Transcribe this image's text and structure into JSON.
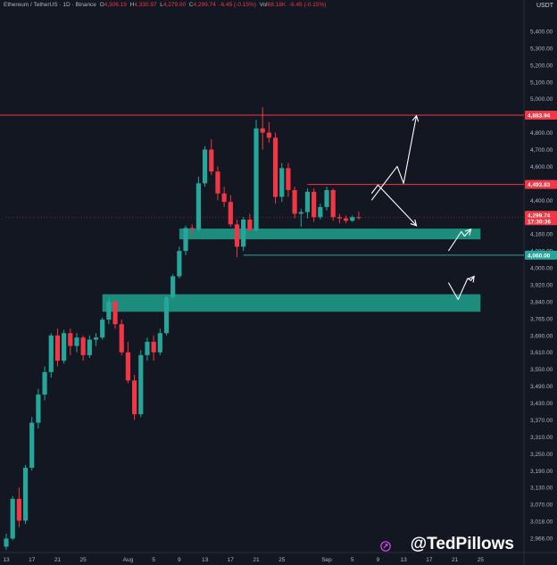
{
  "header": {
    "symbol": "Ethereum / TetherUS · 1D · Binance",
    "open_label": "O",
    "open": "4,306.19",
    "high_label": "H",
    "high": "4,330.97",
    "low_label": "L",
    "low": "4,279.00",
    "close_label": "C",
    "close": "4,299.74",
    "change": "-6.45 (-0.15%)",
    "vol_label": "Vol",
    "vol": "68.18K",
    "vol_change": "-6.45 (-0.15%)"
  },
  "unit": "USDT",
  "watermark": "@TedPillows",
  "icons": {
    "logo": "tradingview-logo-icon"
  },
  "colors": {
    "up": "#26a69a",
    "down": "#f23645",
    "background": "#131722",
    "zone": "#1e9e8a",
    "line_red": "#f23645",
    "line_green": "#26a69a",
    "text": "#b2b5be"
  },
  "chart_data": {
    "type": "candlestick",
    "title": "",
    "ylim": [
      2930,
      5440
    ],
    "y_ticks": [
      "5,400.00",
      "5,300.00",
      "5,200.00",
      "5,100.00",
      "5,000.00",
      "4,880.00",
      "4,800.00",
      "4,700.00",
      "4,600.00",
      "4,500.00",
      "4,400.00",
      "4,300.00",
      "4,160.00",
      "4,080.00",
      "4,000.00",
      "3,920.00",
      "3,840.00",
      "3,765.00",
      "3,690.00",
      "3,610.00",
      "3,550.00",
      "3,490.00",
      "3,430.00",
      "3,370.00",
      "3,310.00",
      "3,250.00",
      "3,190.00",
      "3,130.00",
      "3,070.00",
      "3,018.00",
      "2,966.00"
    ],
    "x_ticks": [
      {
        "day": 0,
        "label": "13"
      },
      {
        "day": 4,
        "label": "17"
      },
      {
        "day": 8,
        "label": "21"
      },
      {
        "day": 12,
        "label": "25"
      },
      {
        "day": 19,
        "label": "Aug"
      },
      {
        "day": 23,
        "label": "5"
      },
      {
        "day": 27,
        "label": "9"
      },
      {
        "day": 31,
        "label": "13"
      },
      {
        "day": 35,
        "label": "17"
      },
      {
        "day": 39,
        "label": "21"
      },
      {
        "day": 43,
        "label": "25"
      },
      {
        "day": 50,
        "label": "Sep"
      },
      {
        "day": 54,
        "label": "5"
      },
      {
        "day": 58,
        "label": "9"
      },
      {
        "day": 62,
        "label": "13"
      },
      {
        "day": 66,
        "label": "17"
      },
      {
        "day": 70,
        "label": "21"
      },
      {
        "day": 74,
        "label": "25"
      }
    ],
    "candles": [
      [
        2940,
        2980,
        2930,
        2965
      ],
      [
        2965,
        3100,
        2960,
        3090
      ],
      [
        3090,
        3130,
        3000,
        3020
      ],
      [
        3020,
        3210,
        3010,
        3200
      ],
      [
        3200,
        3380,
        3190,
        3360
      ],
      [
        3360,
        3480,
        3340,
        3460
      ],
      [
        3460,
        3560,
        3440,
        3540
      ],
      [
        3540,
        3700,
        3520,
        3690
      ],
      [
        3690,
        3720,
        3560,
        3580
      ],
      [
        3580,
        3715,
        3570,
        3700
      ],
      [
        3700,
        3720,
        3600,
        3640
      ],
      [
        3640,
        3700,
        3610,
        3680
      ],
      [
        3680,
        3690,
        3580,
        3600
      ],
      [
        3600,
        3690,
        3590,
        3670
      ],
      [
        3670,
        3700,
        3640,
        3680
      ],
      [
        3680,
        3770,
        3670,
        3760
      ],
      [
        3760,
        3860,
        3740,
        3840
      ],
      [
        3840,
        3850,
        3720,
        3740
      ],
      [
        3740,
        3760,
        3600,
        3610
      ],
      [
        3610,
        3660,
        3500,
        3510
      ],
      [
        3510,
        3530,
        3370,
        3390
      ],
      [
        3390,
        3620,
        3380,
        3600
      ],
      [
        3600,
        3680,
        3580,
        3660
      ],
      [
        3660,
        3690,
        3580,
        3610
      ],
      [
        3610,
        3720,
        3600,
        3700
      ],
      [
        3700,
        3870,
        3690,
        3860
      ],
      [
        3860,
        3970,
        3850,
        3960
      ],
      [
        3960,
        4100,
        3950,
        4080
      ],
      [
        4080,
        4230,
        4060,
        4210
      ],
      [
        4210,
        4240,
        4150,
        4200
      ],
      [
        4200,
        4540,
        4180,
        4500
      ],
      [
        4500,
        4720,
        4480,
        4700
      ],
      [
        4700,
        4760,
        4550,
        4570
      ],
      [
        4570,
        4600,
        4400,
        4440
      ],
      [
        4440,
        4480,
        4360,
        4390
      ],
      [
        4390,
        4430,
        4220,
        4240
      ],
      [
        4240,
        4280,
        4050,
        4100
      ],
      [
        4100,
        4300,
        4080,
        4280
      ],
      [
        4280,
        4320,
        4180,
        4190
      ],
      [
        4190,
        4860,
        4180,
        4820
      ],
      [
        4820,
        4940,
        4700,
        4800
      ],
      [
        4800,
        4850,
        4740,
        4770
      ],
      [
        4770,
        4800,
        4380,
        4420
      ],
      [
        4420,
        4620,
        4390,
        4590
      ],
      [
        4590,
        4620,
        4420,
        4460
      ],
      [
        4460,
        4480,
        4290,
        4320
      ],
      [
        4320,
        4350,
        4220,
        4330
      ],
      [
        4330,
        4470,
        4290,
        4450
      ],
      [
        4450,
        4470,
        4260,
        4300
      ],
      [
        4300,
        4380,
        4280,
        4360
      ],
      [
        4360,
        4480,
        4340,
        4460
      ],
      [
        4460,
        4470,
        4270,
        4300
      ],
      [
        4300,
        4320,
        4250,
        4290
      ],
      [
        4290,
        4310,
        4250,
        4270
      ],
      [
        4270,
        4310,
        4260,
        4300
      ],
      [
        4300,
        4331,
        4279,
        4299.74
      ]
    ],
    "levels": [
      {
        "price": 4883.94,
        "label": "4,883.94",
        "color": "#f23645",
        "start_day": -1
      },
      {
        "price": 4493.83,
        "label": "4,493.83",
        "color": "#f23645",
        "start_day": 47
      },
      {
        "price": 4060.0,
        "label": "4,060.00",
        "color": "#26a69a",
        "start_day": 37
      }
    ],
    "current_price": {
      "price": 4299.74,
      "label": "4,299.74",
      "countdown": "17:30:36"
    },
    "zones": [
      {
        "low": 4135,
        "high": 4205,
        "start_day": 27,
        "end_day": 74
      },
      {
        "low": 3795,
        "high": 3875,
        "start_day": 15,
        "end_day": 74
      }
    ],
    "projections": [
      [
        [
          57,
          4400
        ],
        [
          61,
          4600
        ],
        [
          62,
          4500
        ],
        [
          64,
          4880
        ]
      ],
      [
        [
          57,
          4440
        ],
        [
          58,
          4490
        ],
        [
          64,
          4230
        ]
      ],
      [
        [
          69,
          4080
        ],
        [
          71,
          4180
        ],
        [
          71.5,
          4150
        ],
        [
          72.5,
          4200
        ]
      ],
      [
        [
          69,
          3930
        ],
        [
          70.5,
          3850
        ],
        [
          72,
          3950
        ],
        [
          72.5,
          3940
        ],
        [
          73,
          3960
        ]
      ]
    ]
  }
}
